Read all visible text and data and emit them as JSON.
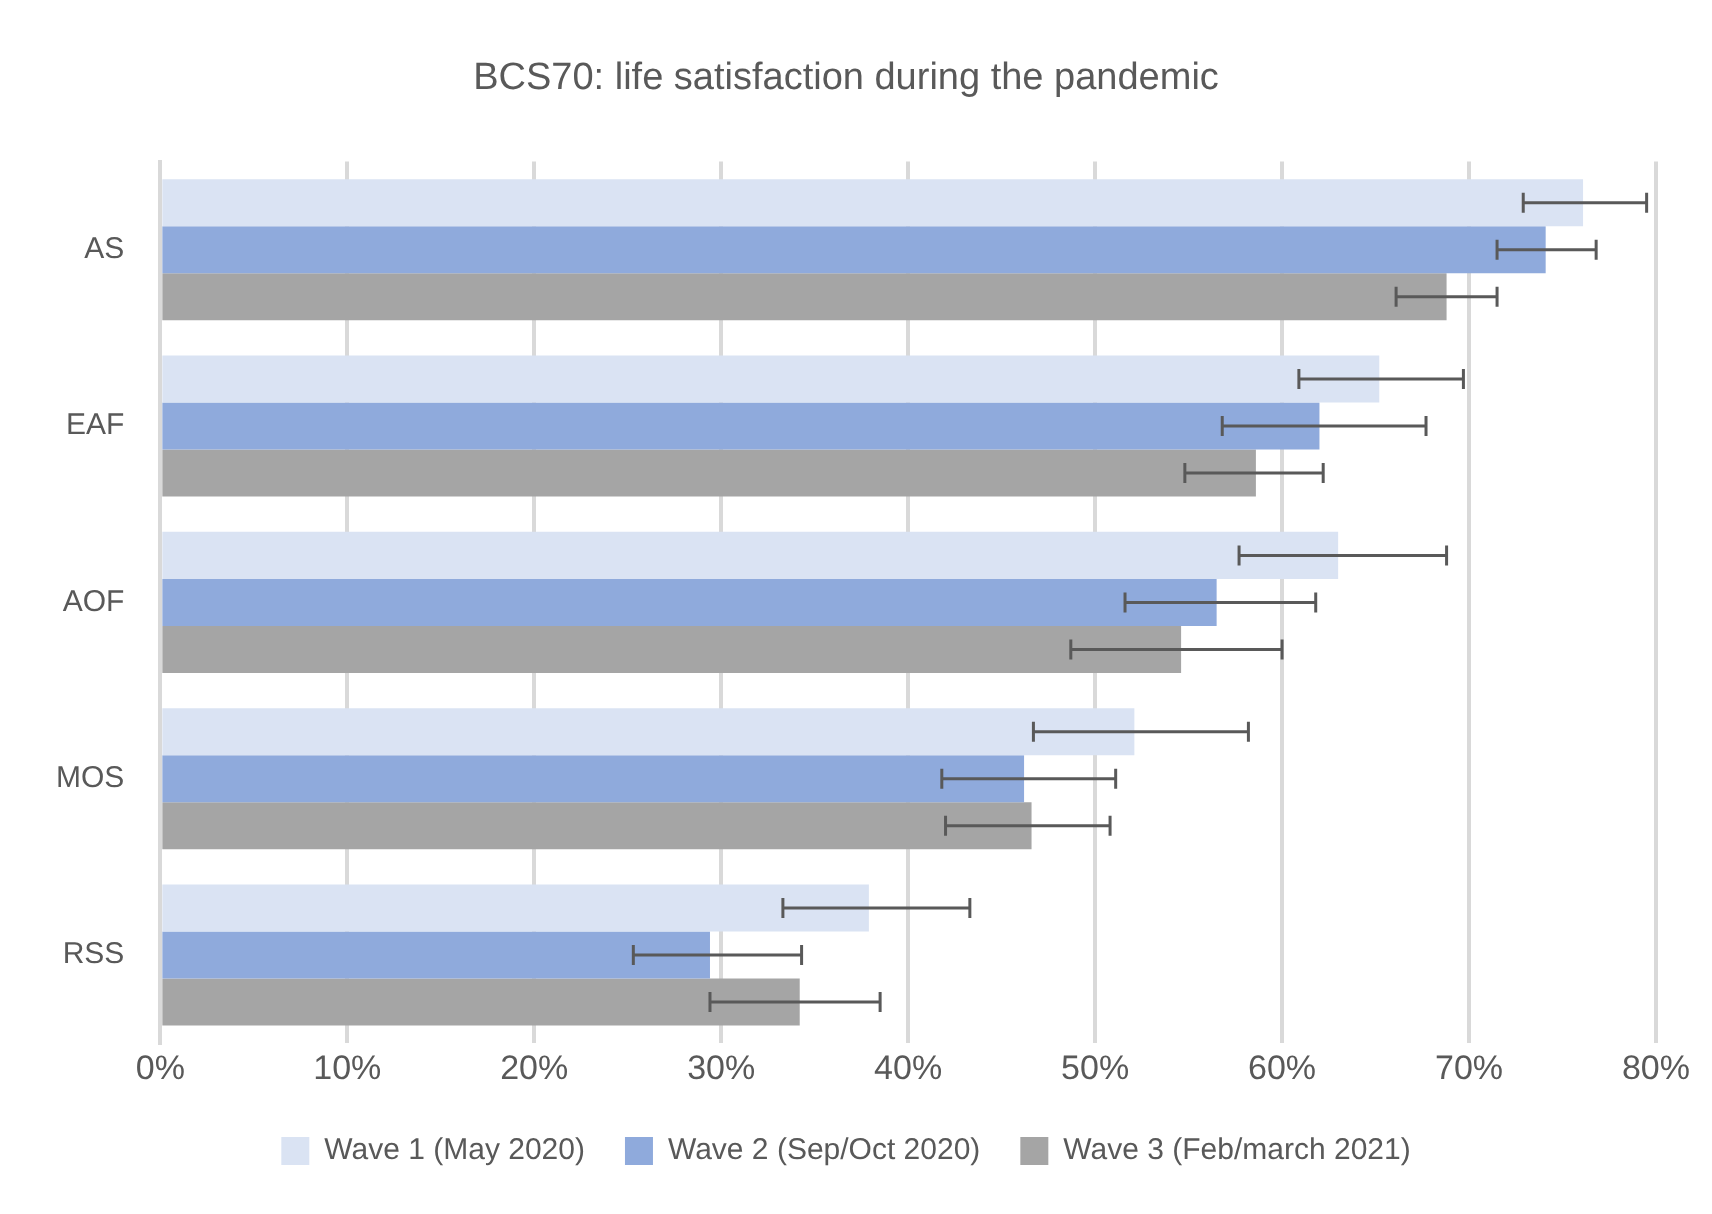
{
  "chart_data": {
    "type": "bar",
    "orientation": "horizontal",
    "title": "BCS70: life satisfaction during the pandemic",
    "categories": [
      "AS",
      "EAF",
      "AOF",
      "MOS",
      "RSS"
    ],
    "series": [
      {
        "name": "Wave 1 (May 2020)",
        "color": "#dae3f3",
        "values": [
          76.1,
          65.2,
          63.0,
          52.1,
          37.9
        ],
        "errors": [
          [
            72.9,
            79.5
          ],
          [
            60.9,
            69.7
          ],
          [
            57.7,
            68.8
          ],
          [
            46.7,
            58.2
          ],
          [
            33.3,
            43.3
          ]
        ]
      },
      {
        "name": "Wave 2 (Sep/Oct 2020)",
        "color": "#8faadc",
        "values": [
          74.1,
          62.0,
          56.5,
          46.2,
          29.4
        ],
        "errors": [
          [
            71.5,
            76.8
          ],
          [
            56.8,
            67.7
          ],
          [
            51.6,
            61.8
          ],
          [
            41.8,
            51.1
          ],
          [
            25.3,
            34.3
          ]
        ]
      },
      {
        "name": "Wave 3 (Feb/march 2021)",
        "color": "#a5a5a5",
        "values": [
          68.8,
          58.6,
          54.6,
          46.6,
          34.2
        ],
        "errors": [
          [
            66.1,
            71.5
          ],
          [
            54.8,
            62.2
          ],
          [
            48.7,
            60.0
          ],
          [
            42.0,
            50.8
          ],
          [
            29.4,
            38.5
          ]
        ]
      }
    ],
    "xlim": [
      0,
      80
    ],
    "xticks": [
      {
        "value": 0,
        "label": "0%"
      },
      {
        "value": 10,
        "label": "10%"
      },
      {
        "value": 20,
        "label": "20%"
      },
      {
        "value": 30,
        "label": "30%"
      },
      {
        "value": 40,
        "label": "40%"
      },
      {
        "value": 50,
        "label": "50%"
      },
      {
        "value": 60,
        "label": "60%"
      },
      {
        "value": 70,
        "label": "70%"
      },
      {
        "value": 80,
        "label": "80%"
      }
    ],
    "grid": "x",
    "legend": "bottom"
  }
}
